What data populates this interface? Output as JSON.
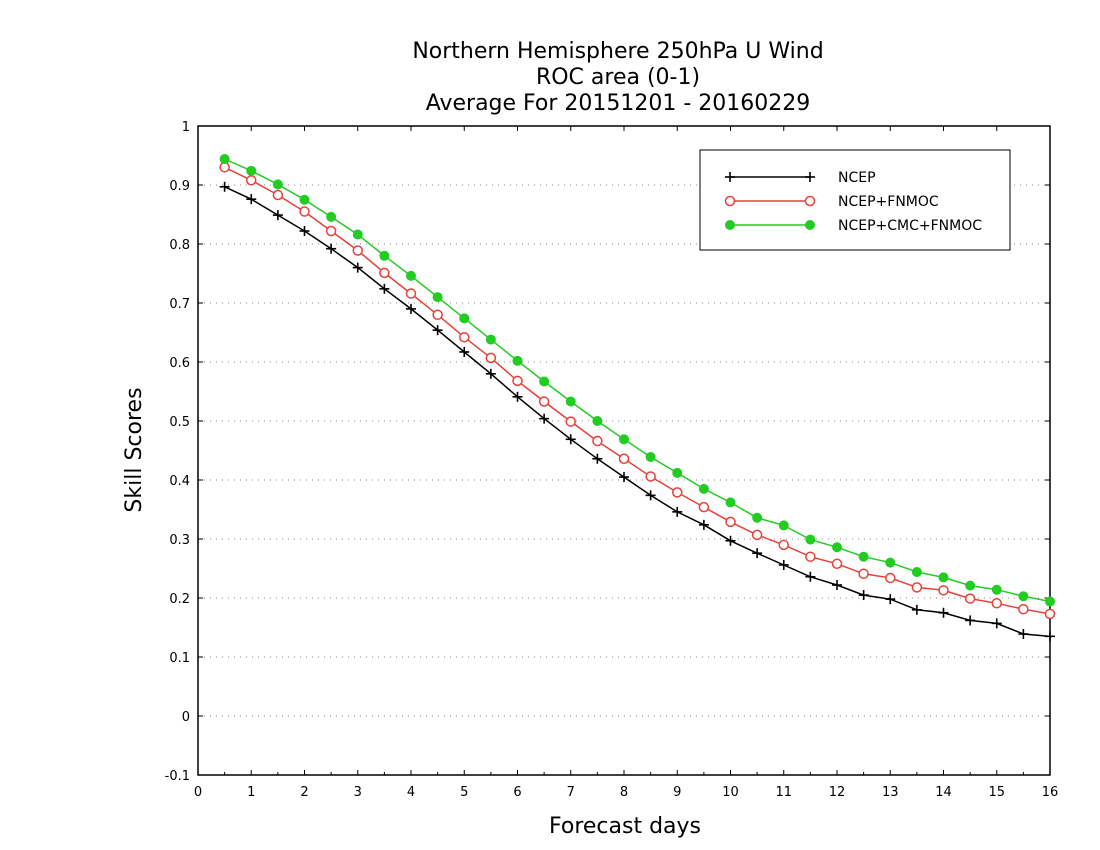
{
  "chart_data": {
    "type": "line",
    "title": [
      "Northern Hemisphere 250hPa U Wind",
      "ROC area (0-1)",
      "Average For 20151201 - 20160229"
    ],
    "xlabel": "Forecast days",
    "ylabel": "Skill Scores",
    "xlim": [
      0,
      16
    ],
    "ylim": [
      -0.1,
      1
    ],
    "xticks": [
      "0",
      "1",
      "2",
      "3",
      "4",
      "5",
      "6",
      "7",
      "8",
      "9",
      "10",
      "11",
      "12",
      "13",
      "14",
      "15",
      "16"
    ],
    "yticks": [
      "-0.1",
      "0",
      "0.1",
      "0.2",
      "0.3",
      "0.4",
      "0.5",
      "0.6",
      "0.7",
      "0.8",
      "0.9",
      "1"
    ],
    "grid": true,
    "legend_position": "top-right",
    "x": [
      0.5,
      1,
      1.5,
      2,
      2.5,
      3,
      3.5,
      4,
      4.5,
      5,
      5.5,
      6,
      6.5,
      7,
      7.5,
      8,
      8.5,
      9,
      9.5,
      10,
      10.5,
      11,
      11.5,
      12,
      12.5,
      13,
      13.5,
      14,
      14.5,
      15,
      15.5,
      16
    ],
    "series": [
      {
        "name": "NCEP",
        "color": "#000000",
        "marker": "plus",
        "values": [
          0.897,
          0.876,
          0.849,
          0.822,
          0.792,
          0.76,
          0.724,
          0.69,
          0.654,
          0.617,
          0.58,
          0.541,
          0.504,
          0.469,
          0.436,
          0.405,
          0.374,
          0.346,
          0.324,
          0.297,
          0.276,
          0.256,
          0.236,
          0.222,
          0.205,
          0.198,
          0.18,
          0.175,
          0.162,
          0.157,
          0.139,
          0.135
        ]
      },
      {
        "name": "NCEP+FNMOC",
        "color": "#e8403a",
        "marker": "open-circle",
        "values": [
          0.93,
          0.908,
          0.883,
          0.855,
          0.822,
          0.789,
          0.751,
          0.716,
          0.68,
          0.642,
          0.607,
          0.568,
          0.533,
          0.499,
          0.466,
          0.436,
          0.406,
          0.379,
          0.354,
          0.329,
          0.307,
          0.29,
          0.27,
          0.258,
          0.241,
          0.234,
          0.218,
          0.213,
          0.199,
          0.191,
          0.181,
          0.173
        ]
      },
      {
        "name": "NCEP+CMC+FNMOC",
        "color": "#22cc22",
        "marker": "filled-circle",
        "values": [
          0.944,
          0.924,
          0.901,
          0.875,
          0.846,
          0.816,
          0.78,
          0.746,
          0.71,
          0.674,
          0.638,
          0.602,
          0.567,
          0.533,
          0.5,
          0.469,
          0.439,
          0.412,
          0.385,
          0.362,
          0.336,
          0.323,
          0.299,
          0.286,
          0.27,
          0.26,
          0.244,
          0.235,
          0.221,
          0.214,
          0.203,
          0.194
        ]
      }
    ]
  }
}
